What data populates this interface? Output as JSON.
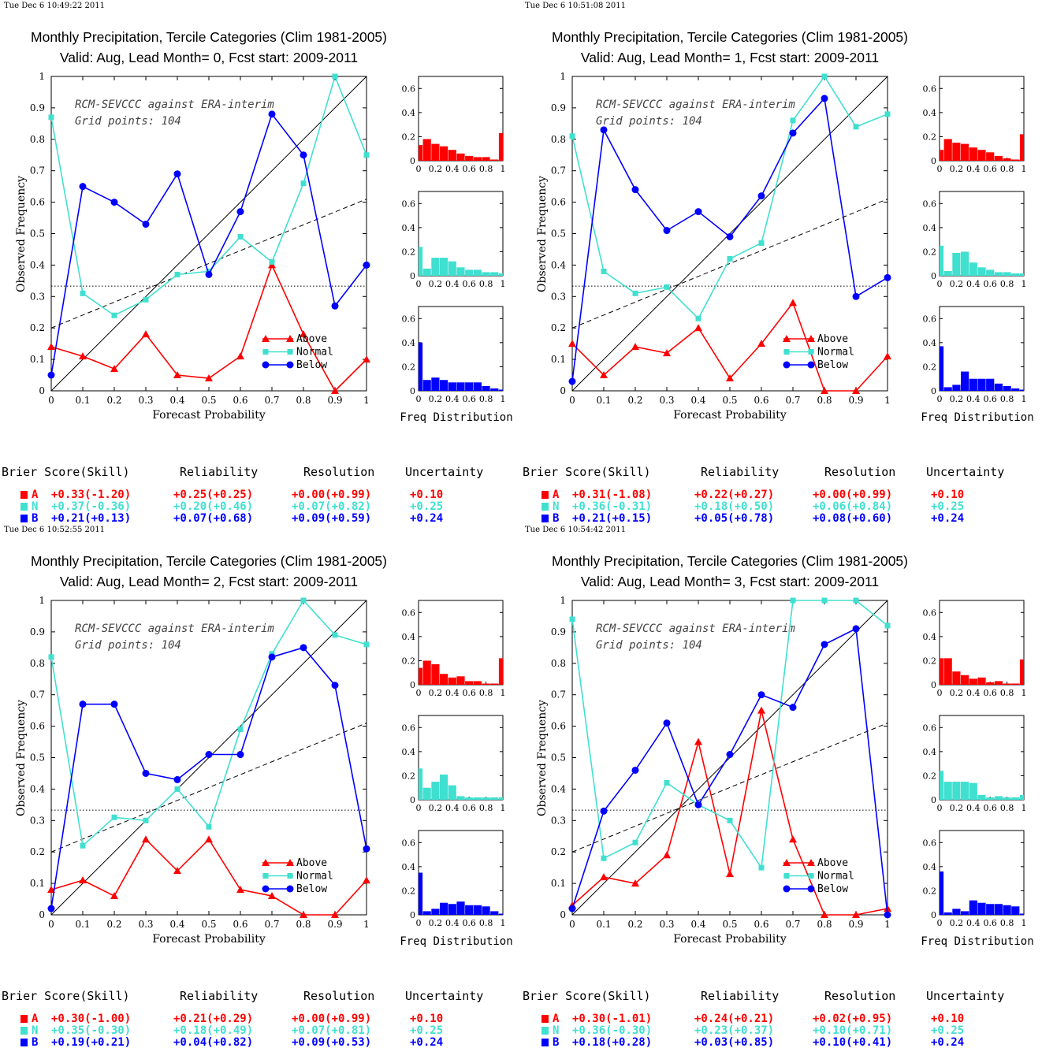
{
  "labels": {
    "ylabel": "Observed Frequency",
    "xlabel": "Forecast Probability",
    "hist_label": "Freq Distribution",
    "legend": [
      "Above",
      "Normal",
      "Below"
    ],
    "score_headers": [
      "Brier Score(Skill)",
      "Reliability",
      "Resolution",
      "Uncertainty"
    ],
    "cats": [
      "A",
      "N",
      "B"
    ]
  },
  "colors": {
    "A": "#ff0000",
    "N": "#40e0d0",
    "B": "#0000ff"
  },
  "panels": [
    {
      "timestamp": "Tue Dec  6 10:49:22 2011",
      "title1": "Monthly Precipitation, Tercile Categories (Clim 1981-2005)",
      "title2": "Valid: Aug, Lead Month= 0, Fcst start: 2009-2011",
      "note1": "RCM-SEVCCC against ERA-interim",
      "note2": "Grid points:  104",
      "scores": {
        "A": [
          "+0.33(-1.20)",
          "+0.25(+0.25)",
          "+0.00(+0.99)",
          "+0.10"
        ],
        "N": [
          "+0.37(-0.36)",
          "+0.20(+0.46)",
          "+0.07(+0.82)",
          "+0.25"
        ],
        "B": [
          "+0.21(+0.13)",
          "+0.07(+0.68)",
          "+0.09(+0.59)",
          "+0.24"
        ]
      }
    },
    {
      "timestamp": "Tue Dec  6 10:51:08 2011",
      "title1": "Monthly Precipitation, Tercile Categories (Clim 1981-2005)",
      "title2": "Valid: Aug, Lead Month= 1, Fcst start: 2009-2011",
      "note1": "RCM-SEVCCC against ERA-interim",
      "note2": "Grid points:  104",
      "scores": {
        "A": [
          "+0.31(-1.08)",
          "+0.22(+0.27)",
          "+0.00(+0.99)",
          "+0.10"
        ],
        "N": [
          "+0.36(-0.31)",
          "+0.18(+0.50)",
          "+0.06(+0.84)",
          "+0.25"
        ],
        "B": [
          "+0.21(+0.15)",
          "+0.05(+0.78)",
          "+0.08(+0.60)",
          "+0.24"
        ]
      }
    },
    {
      "timestamp": "Tue Dec  6 10:52:55 2011",
      "title1": "Monthly Precipitation, Tercile Categories (Clim 1981-2005)",
      "title2": "Valid: Aug, Lead Month= 2, Fcst start: 2009-2011",
      "note1": "RCM-SEVCCC against ERA-interim",
      "note2": "Grid points:  104",
      "scores": {
        "A": [
          "+0.30(-1.00)",
          "+0.21(+0.29)",
          "+0.00(+0.99)",
          "+0.10"
        ],
        "N": [
          "+0.35(-0.30)",
          "+0.18(+0.49)",
          "+0.07(+0.81)",
          "+0.25"
        ],
        "B": [
          "+0.19(+0.21)",
          "+0.04(+0.82)",
          "+0.09(+0.53)",
          "+0.24"
        ]
      }
    },
    {
      "timestamp": "Tue Dec  6 10:54:42 2011",
      "title1": "Monthly Precipitation, Tercile Categories (Clim 1981-2005)",
      "title2": "Valid: Aug, Lead Month= 3, Fcst start: 2009-2011",
      "note1": "RCM-SEVCCC against ERA-interim",
      "note2": "Grid points:  104",
      "scores": {
        "A": [
          "+0.30(-1.01)",
          "+0.24(+0.21)",
          "+0.02(+0.95)",
          "+0.10"
        ],
        "N": [
          "+0.36(-0.30)",
          "+0.23(+0.37)",
          "+0.10(+0.71)",
          "+0.25"
        ],
        "B": [
          "+0.18(+0.28)",
          "+0.03(+0.85)",
          "+0.10(+0.41)",
          "+0.24"
        ]
      }
    }
  ],
  "chart_data": [
    {
      "type": "line",
      "x": [
        0,
        0.1,
        0.2,
        0.3,
        0.4,
        0.5,
        0.6,
        0.7,
        0.8,
        0.9,
        1
      ],
      "xlim": [
        0,
        1
      ],
      "ylim": [
        0,
        1
      ],
      "climatology": 0.333,
      "fit_line": [
        [
          0,
          0.2
        ],
        [
          1,
          0.61
        ]
      ],
      "series": [
        {
          "name": "Above",
          "values": [
            0.14,
            0.11,
            0.07,
            0.18,
            0.05,
            0.04,
            0.11,
            0.4,
            0.18,
            0.0,
            0.1
          ]
        },
        {
          "name": "Normal",
          "values": [
            0.87,
            0.31,
            0.24,
            0.29,
            0.37,
            0.38,
            0.49,
            0.41,
            0.66,
            1.0,
            0.75
          ]
        },
        {
          "name": "Below",
          "values": [
            0.05,
            0.65,
            0.6,
            0.53,
            0.69,
            0.37,
            0.57,
            0.88,
            0.75,
            0.27,
            0.4
          ]
        }
      ],
      "hist": {
        "ylim": [
          0,
          0.7
        ],
        "A": [
          0.13,
          0.18,
          0.14,
          0.12,
          0.09,
          0.06,
          0.04,
          0.03,
          0.03,
          0.01,
          0.23
        ],
        "N": [
          0.24,
          0.06,
          0.15,
          0.15,
          0.12,
          0.07,
          0.05,
          0.05,
          0.03,
          0.03,
          0.02
        ],
        "B": [
          0.4,
          0.09,
          0.11,
          0.09,
          0.07,
          0.07,
          0.07,
          0.07,
          0.04,
          0.02,
          0.01
        ]
      }
    },
    {
      "type": "line",
      "x": [
        0,
        0.1,
        0.2,
        0.3,
        0.4,
        0.5,
        0.6,
        0.7,
        0.8,
        0.9,
        1
      ],
      "xlim": [
        0,
        1
      ],
      "ylim": [
        0,
        1
      ],
      "climatology": 0.333,
      "fit_line": [
        [
          0,
          0.2
        ],
        [
          1,
          0.61
        ]
      ],
      "series": [
        {
          "name": "Above",
          "values": [
            0.15,
            0.05,
            0.14,
            0.12,
            0.2,
            0.04,
            0.15,
            0.28,
            0.0,
            0.0,
            0.11
          ]
        },
        {
          "name": "Normal",
          "values": [
            0.81,
            0.38,
            0.31,
            0.33,
            0.23,
            0.42,
            0.47,
            0.86,
            1.0,
            0.84,
            0.88
          ]
        },
        {
          "name": "Below",
          "values": [
            0.03,
            0.83,
            0.64,
            0.51,
            0.57,
            0.49,
            0.62,
            0.82,
            0.93,
            0.3,
            0.36
          ]
        }
      ],
      "hist": {
        "ylim": [
          0,
          0.7
        ],
        "A": [
          0.09,
          0.18,
          0.15,
          0.14,
          0.11,
          0.09,
          0.07,
          0.04,
          0.02,
          0.01,
          0.22
        ],
        "N": [
          0.25,
          0.04,
          0.19,
          0.2,
          0.11,
          0.07,
          0.05,
          0.03,
          0.03,
          0.02,
          0.02
        ],
        "B": [
          0.37,
          0.03,
          0.05,
          0.16,
          0.1,
          0.1,
          0.1,
          0.06,
          0.04,
          0.02,
          0.01
        ]
      }
    },
    {
      "type": "line",
      "x": [
        0,
        0.1,
        0.2,
        0.3,
        0.4,
        0.5,
        0.6,
        0.7,
        0.8,
        0.9,
        1
      ],
      "xlim": [
        0,
        1
      ],
      "ylim": [
        0,
        1
      ],
      "climatology": 0.333,
      "fit_line": [
        [
          0,
          0.2
        ],
        [
          1,
          0.61
        ]
      ],
      "series": [
        {
          "name": "Above",
          "values": [
            0.08,
            0.11,
            0.06,
            0.24,
            0.14,
            0.24,
            0.08,
            0.06,
            0.0,
            0.0,
            0.11
          ]
        },
        {
          "name": "Normal",
          "values": [
            0.82,
            0.22,
            0.31,
            0.3,
            0.4,
            0.28,
            0.59,
            0.83,
            1.0,
            0.89,
            0.86
          ]
        },
        {
          "name": "Below",
          "values": [
            0.02,
            0.67,
            0.67,
            0.45,
            0.43,
            0.51,
            0.51,
            0.82,
            0.85,
            0.73,
            0.21
          ]
        }
      ],
      "hist": {
        "ylim": [
          0,
          0.7
        ],
        "A": [
          0.14,
          0.2,
          0.17,
          0.09,
          0.06,
          0.07,
          0.03,
          0.03,
          0.01,
          0.01,
          0.22
        ],
        "N": [
          0.26,
          0.1,
          0.15,
          0.21,
          0.12,
          0.03,
          0.02,
          0.02,
          0.02,
          0.02,
          0.02
        ],
        "B": [
          0.35,
          0.03,
          0.05,
          0.1,
          0.09,
          0.11,
          0.08,
          0.08,
          0.07,
          0.03,
          0.01
        ]
      }
    },
    {
      "type": "line",
      "x": [
        0,
        0.1,
        0.2,
        0.3,
        0.4,
        0.5,
        0.6,
        0.7,
        0.8,
        0.9,
        1
      ],
      "xlim": [
        0,
        1
      ],
      "ylim": [
        0,
        1
      ],
      "climatology": 0.333,
      "fit_line": [
        [
          0,
          0.2
        ],
        [
          1,
          0.61
        ]
      ],
      "series": [
        {
          "name": "Above",
          "values": [
            0.03,
            0.12,
            0.1,
            0.19,
            0.55,
            0.13,
            0.65,
            0.24,
            0.0,
            0.0,
            0.02
          ]
        },
        {
          "name": "Normal",
          "values": [
            0.94,
            0.18,
            0.23,
            0.42,
            0.35,
            0.3,
            0.15,
            1.0,
            1.0,
            1.0,
            0.92
          ]
        },
        {
          "name": "Below",
          "values": [
            0.02,
            0.33,
            0.46,
            0.61,
            0.35,
            0.51,
            0.7,
            0.66,
            0.86,
            0.91,
            0.0
          ]
        }
      ],
      "hist": {
        "ylim": [
          0,
          0.7
        ],
        "A": [
          0.22,
          0.22,
          0.11,
          0.08,
          0.05,
          0.06,
          0.02,
          0.03,
          0.01,
          0.01,
          0.21
        ],
        "N": [
          0.24,
          0.15,
          0.15,
          0.15,
          0.14,
          0.04,
          0.02,
          0.03,
          0.02,
          0.02,
          0.04
        ],
        "B": [
          0.36,
          0.02,
          0.05,
          0.03,
          0.12,
          0.1,
          0.09,
          0.09,
          0.08,
          0.07,
          0.01
        ]
      }
    }
  ]
}
